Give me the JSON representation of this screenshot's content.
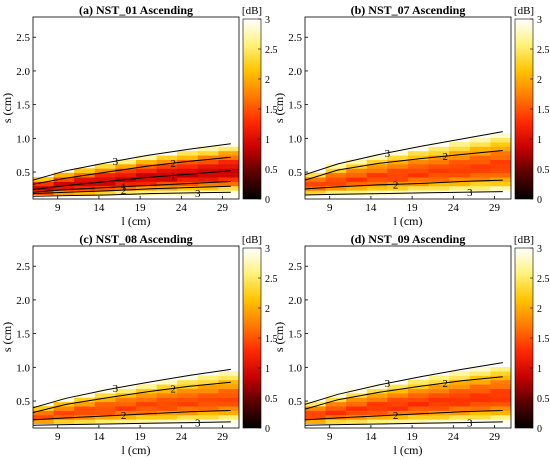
{
  "chart_data": [
    {
      "type": "heatmap",
      "title": "(a) NST_01 Ascending",
      "xlabel": "l (cm)",
      "ylabel": "s (cm)",
      "xticks": [
        9,
        14,
        19,
        24,
        29
      ],
      "yticks": [
        0.5,
        1.0,
        1.5,
        2.0,
        2.5
      ],
      "xlim": [
        6,
        31
      ],
      "ylim": [
        0.1,
        2.8
      ],
      "colorbar": {
        "label": "[dB]",
        "ticks": [
          0,
          0.5,
          1,
          1.5,
          2,
          2.5,
          3
        ],
        "range": [
          0,
          3
        ]
      },
      "contours": [
        {
          "level": "1",
          "lower_s": [
            0.2,
            0.24,
            0.27,
            0.3,
            0.33,
            0.36
          ],
          "upper_s": [
            0.24,
            0.3,
            0.36,
            0.42,
            0.47,
            0.52
          ]
        },
        {
          "level": "2",
          "lower_s": [
            0.18,
            0.2,
            0.22,
            0.25,
            0.27,
            0.29
          ],
          "upper_s": [
            0.32,
            0.41,
            0.5,
            0.59,
            0.66,
            0.72
          ]
        },
        {
          "level": "3",
          "lower_s": [
            0.14,
            0.15,
            0.16,
            0.18,
            0.19,
            0.2
          ],
          "upper_s": [
            0.38,
            0.52,
            0.64,
            0.75,
            0.84,
            0.92
          ]
        }
      ],
      "core_min_db": 0.8
    },
    {
      "type": "heatmap",
      "title": "(b) NST_07 Ascending",
      "xlabel": "l (cm)",
      "ylabel": "s (cm)",
      "xticks": [
        9,
        14,
        19,
        24,
        29
      ],
      "yticks": [
        0.5,
        1.0,
        1.5,
        2.0,
        2.5
      ],
      "xlim": [
        6,
        31
      ],
      "ylim": [
        0.1,
        2.8
      ],
      "colorbar": {
        "label": "[dB]",
        "ticks": [
          0,
          0.5,
          1,
          1.5,
          2,
          2.5,
          3
        ],
        "range": [
          0,
          3
        ]
      },
      "contours": [
        {
          "level": "2",
          "lower_s": [
            0.25,
            0.28,
            0.31,
            0.33,
            0.36,
            0.38
          ],
          "upper_s": [
            0.38,
            0.53,
            0.63,
            0.7,
            0.76,
            0.82
          ]
        },
        {
          "level": "3",
          "lower_s": [
            0.16,
            0.17,
            0.18,
            0.19,
            0.2,
            0.21
          ],
          "upper_s": [
            0.46,
            0.62,
            0.76,
            0.88,
            0.99,
            1.1
          ]
        }
      ],
      "core_min_db": 1.3
    },
    {
      "type": "heatmap",
      "title": "(c) NST_08 Ascending",
      "xlabel": "l (cm)",
      "ylabel": "s (cm)",
      "xticks": [
        9,
        14,
        19,
        24,
        29
      ],
      "yticks": [
        0.5,
        1.0,
        1.5,
        2.0,
        2.5
      ],
      "xlim": [
        6,
        31
      ],
      "ylim": [
        0.1,
        2.8
      ],
      "colorbar": {
        "label": "[dB]",
        "ticks": [
          0,
          0.5,
          1,
          1.5,
          2,
          2.5,
          3
        ],
        "range": [
          0,
          3
        ]
      },
      "contours": [
        {
          "level": "2",
          "lower_s": [
            0.22,
            0.25,
            0.28,
            0.31,
            0.34,
            0.36
          ],
          "upper_s": [
            0.33,
            0.45,
            0.55,
            0.64,
            0.72,
            0.78
          ]
        },
        {
          "level": "3",
          "lower_s": [
            0.14,
            0.15,
            0.16,
            0.17,
            0.18,
            0.19
          ],
          "upper_s": [
            0.4,
            0.54,
            0.67,
            0.78,
            0.88,
            0.97
          ]
        }
      ],
      "core_min_db": 1.35
    },
    {
      "type": "heatmap",
      "title": "(d) NST_09 Ascending",
      "xlabel": "l (cm)",
      "ylabel": "s (cm)",
      "xticks": [
        9,
        14,
        19,
        24,
        29
      ],
      "yticks": [
        0.5,
        1.0,
        1.5,
        2.0,
        2.5
      ],
      "xlim": [
        6,
        31
      ],
      "ylim": [
        0.1,
        2.8
      ],
      "colorbar": {
        "label": "[dB]",
        "ticks": [
          0,
          0.5,
          1,
          1.5,
          2,
          2.5,
          3
        ],
        "range": [
          0,
          3
        ]
      },
      "contours": [
        {
          "level": "2",
          "lower_s": [
            0.22,
            0.25,
            0.28,
            0.31,
            0.34,
            0.36
          ],
          "upper_s": [
            0.38,
            0.52,
            0.63,
            0.72,
            0.8,
            0.86
          ]
        },
        {
          "level": "3",
          "lower_s": [
            0.14,
            0.15,
            0.16,
            0.17,
            0.18,
            0.19
          ],
          "upper_s": [
            0.45,
            0.6,
            0.74,
            0.86,
            0.97,
            1.07
          ]
        }
      ],
      "core_min_db": 1.25
    }
  ],
  "contour_x": [
    6,
    10,
    15,
    20,
    25,
    30
  ],
  "colormap_stops": [
    "#000000",
    "#5a0000",
    "#c80000",
    "#ff2a00",
    "#ff7b00",
    "#ffc400",
    "#fff27a",
    "#ffffff"
  ]
}
